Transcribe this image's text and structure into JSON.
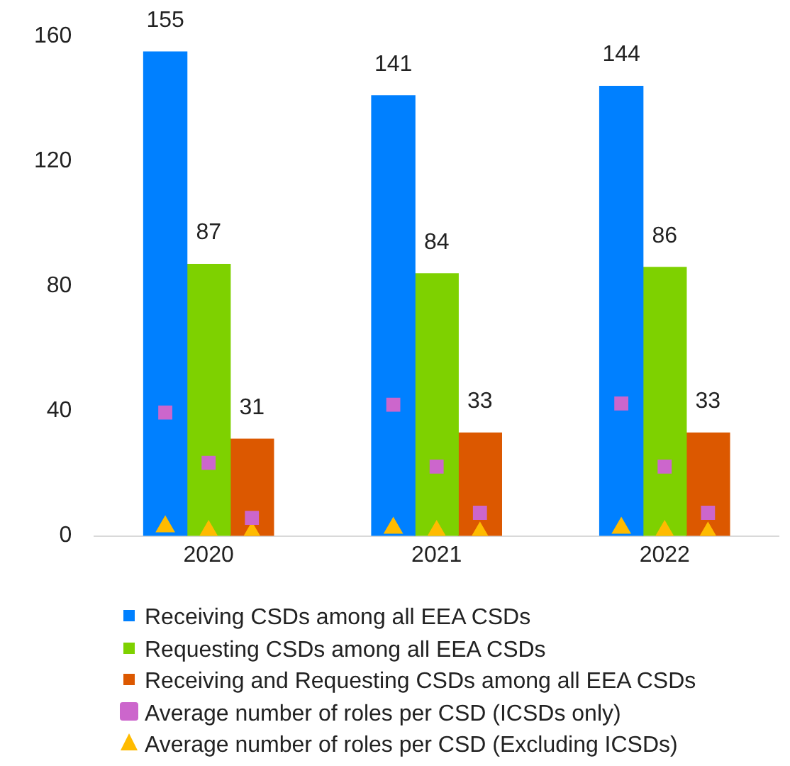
{
  "chart_data": {
    "type": "bar",
    "series": [
      {
        "name": "Receiving CSDs among all EEA CSDs",
        "color": "#0080ff",
        "x": [
          2019.81,
          2020.81,
          2021.81
        ],
        "values": [
          155,
          141,
          144
        ],
        "value_labels": [
          "155",
          "141",
          "144"
        ]
      },
      {
        "name": "Requesting CSDs among all EEA CSDs",
        "color": "#7ed100",
        "x": [
          2020,
          2021,
          2022
        ],
        "values": [
          87,
          84,
          86
        ],
        "value_labels": [
          "87",
          "84",
          "86"
        ]
      },
      {
        "name": "Receiving and Requesting CSDs among all EEA CSDs",
        "color": "#dc5800",
        "x": [
          2020.19,
          2021.19,
          2022.19
        ],
        "values": [
          31,
          33,
          33
        ],
        "value_labels": [
          "31",
          "33",
          "33"
        ]
      },
      {
        "name": "Average number of roles per CSD (ICSDs only)",
        "type": "scatter",
        "marker": "square",
        "color": "#cc66cc",
        "x": [
          2019.81,
          2020,
          2020.19,
          2020.81,
          2021,
          2021.19,
          2021.81,
          2022,
          2022.19
        ],
        "values": [
          39.5,
          23.4,
          5.8,
          42,
          22.2,
          7.4,
          42.4,
          22.2,
          7.4
        ]
      },
      {
        "name": "Average number of roles per CSD (Excluding ICSDs)",
        "type": "scatter",
        "marker": "triangle",
        "color": "#ffbb00",
        "x": [
          2019.81,
          2020,
          2020.19,
          2020.81,
          2021,
          2021.19,
          2021.81,
          2022,
          2022.19
        ],
        "values": [
          3,
          1.5,
          1,
          2.5,
          1.5,
          1,
          2.5,
          1.5,
          1
        ]
      }
    ],
    "xlim": [
      2019.5,
      2022.5
    ],
    "xticks": [
      2020,
      2021,
      2022
    ],
    "ylim": [
      0,
      160
    ],
    "yticks": [
      0,
      40,
      80,
      120,
      160
    ],
    "grid": false,
    "legend": "bottom"
  }
}
